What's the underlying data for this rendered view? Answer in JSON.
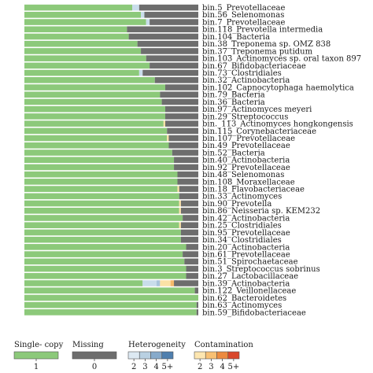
{
  "chart_data": {
    "type": "bar",
    "orientation": "horizontal",
    "stacked": true,
    "grid": false,
    "legend_position": "bottom",
    "xlim": [
      0,
      100
    ],
    "categories": [
      "bin.5_Prevotellaceae",
      "bin.56_Selenomonas",
      "bin.7_Prevotellaceae",
      "bin.118_Prevotella intermedia",
      "bin.104_Bacteria",
      "bin.38_Treponema sp. OMZ 838",
      "bin.37_Treponema putidum",
      "bin.103_Actinomyces sp. oral taxon 897",
      "bin.67_Bifidobacteriaceae",
      "bin.73_Clostridiales",
      "bin.32_Actinobacteria",
      "bin.102_Capnocytophaga haemolytica",
      "bin.79_Bacteria",
      "bin.36_Bacteria",
      "bin.97_Actinomyces meyeri",
      "bin.29_Streptococcus",
      "bin._113_Actinomyces hongkongensis",
      "bin.115_Corynebacteriaceae",
      "bin.107_Prevotellaceae",
      "bin.49_Prevotellaceae",
      "bin.52_Bacteria",
      "bin.40_Actinobacteria",
      "bin.92_Prevotellaceae",
      "bin.48_Selenomonas",
      "bin.108_Moraxellaceae",
      "bin.18_Flavobacteriaceae",
      "bin.33_Actinomyces",
      "bin.90_Prevotella",
      "bin.86_Neisseria sp. KEM232",
      "bin.42_Actinobacteria",
      "bin.25_Clostridiales",
      "bin.95_Prevotellaceae",
      "bin.34_Clostridiales",
      "bin.20_Actinobacteria",
      "bin.61_Prevotellaceae",
      "bin.51_Spirochaetaceae",
      "bin.3_Streptococcus sobrinus",
      "bin.27_Lactobacillaceae",
      "bin.39_Actinobacteria",
      "bin.122_Veillonellaceae",
      "bin.62_Bacteroidetes",
      "bin.63_Actinomyces",
      "bin.59_Bifidobacteriaceae"
    ],
    "series": [
      {
        "name": "1",
        "color": "#8cc97a",
        "values": [
          62,
          67,
          70,
          59,
          60,
          65,
          67,
          70,
          72,
          66,
          75,
          81,
          78,
          79,
          81,
          81,
          80,
          82,
          82,
          83,
          85,
          86,
          86,
          88,
          88,
          88,
          89,
          89,
          89,
          91,
          89,
          90,
          90,
          93,
          91,
          92,
          93,
          93,
          68,
          98,
          100,
          99,
          99
        ]
      },
      {
        "name": "2",
        "color": "#c9ddeb",
        "values": [
          4,
          2,
          2,
          0,
          0,
          0,
          0,
          0,
          0,
          2,
          0,
          0,
          0,
          0,
          0,
          0,
          0,
          0,
          0,
          0,
          0,
          0,
          0,
          0,
          0,
          0,
          0,
          0,
          0,
          0,
          0,
          0,
          0,
          0,
          0,
          0,
          0,
          0,
          8,
          0,
          0,
          0,
          0
        ]
      },
      {
        "name": "3",
        "color": "#a9c4db",
        "values": [
          0,
          0,
          0,
          0,
          0,
          0,
          0,
          0,
          0,
          0,
          0,
          0,
          0,
          0,
          0,
          0,
          0,
          0,
          0,
          0,
          0,
          0,
          0,
          0,
          0,
          0,
          0,
          0,
          0,
          0,
          0,
          0,
          0,
          0,
          0,
          0,
          0,
          0,
          2,
          0,
          0,
          0,
          0
        ]
      },
      {
        "name": "Contamination 1",
        "color": "#fbe2a6",
        "values": [
          0,
          0,
          0,
          0,
          0,
          0,
          0,
          0,
          0,
          0,
          0,
          0,
          0,
          0,
          0,
          0,
          1,
          0,
          1,
          0,
          0,
          0,
          0,
          0,
          0,
          1,
          0,
          1,
          1,
          0,
          1,
          0,
          0,
          0,
          0,
          0,
          0,
          0,
          6,
          0,
          0,
          0,
          0
        ]
      },
      {
        "name": "Contamination 2",
        "color": "#f4b96b",
        "values": [
          0,
          0,
          0,
          0,
          0,
          0,
          0,
          0,
          0,
          0,
          0,
          0,
          0,
          0,
          0,
          0,
          0,
          0,
          0,
          0,
          0,
          0,
          0,
          0,
          0,
          0,
          0,
          0,
          0,
          0,
          0,
          0,
          0,
          0,
          0,
          0,
          0,
          0,
          2,
          0,
          0,
          0,
          0
        ]
      },
      {
        "name": "0",
        "color": "#6d6d6d",
        "values": [
          34,
          31,
          28,
          41,
          40,
          35,
          33,
          30,
          28,
          32,
          25,
          19,
          22,
          21,
          19,
          19,
          19,
          18,
          17,
          17,
          15,
          14,
          14,
          12,
          12,
          11,
          11,
          10,
          10,
          9,
          10,
          10,
          10,
          7,
          9,
          8,
          7,
          7,
          14,
          2,
          0,
          1,
          1
        ]
      }
    ]
  },
  "legend": {
    "groups": [
      {
        "title": "Single- copy",
        "items": [
          {
            "label": "1",
            "color": "#8cc97a"
          }
        ]
      },
      {
        "title": "Missing",
        "items": [
          {
            "label": "0",
            "color": "#6d6d6d"
          }
        ]
      },
      {
        "title": "Heterogeneity",
        "items": [
          {
            "label": "2",
            "color": "#dde9f2"
          },
          {
            "label": "3",
            "color": "#b9d0e2"
          },
          {
            "label": "4",
            "color": "#87aacb"
          },
          {
            "label": "5+",
            "color": "#4f7fae"
          }
        ]
      },
      {
        "title": "Contamination",
        "items": [
          {
            "label": "2",
            "color": "#fde6b0"
          },
          {
            "label": "3",
            "color": "#f8c073"
          },
          {
            "label": "4",
            "color": "#ec8a3f"
          },
          {
            "label": "5+",
            "color": "#d9472b"
          }
        ]
      }
    ]
  }
}
